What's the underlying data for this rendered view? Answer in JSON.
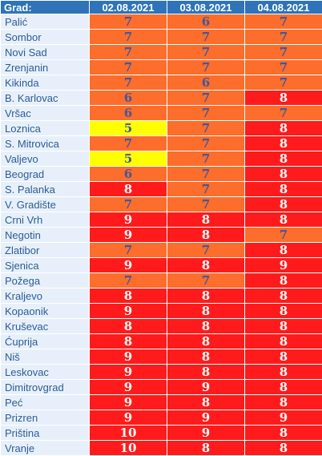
{
  "table": {
    "header": {
      "city": "Grad:",
      "dates": [
        "02.08.2021",
        "03.08.2021",
        "04.08.2021"
      ]
    },
    "level_colors": {
      "orange": "#fd6d2b",
      "red": "#ff1b1b",
      "yellow": "#ffff00"
    },
    "rows": [
      {
        "city": "Palić",
        "values": [
          "7",
          "6",
          "7"
        ],
        "levels": [
          "orange",
          "orange",
          "orange"
        ]
      },
      {
        "city": "Sombor",
        "values": [
          "7",
          "7",
          "7"
        ],
        "levels": [
          "orange",
          "orange",
          "orange"
        ]
      },
      {
        "city": "Novi Sad",
        "values": [
          "7",
          "7",
          "7"
        ],
        "levels": [
          "orange",
          "orange",
          "orange"
        ]
      },
      {
        "city": "Zrenjanin",
        "values": [
          "7",
          "7",
          "7"
        ],
        "levels": [
          "orange",
          "orange",
          "orange"
        ]
      },
      {
        "city": "Kikinda",
        "values": [
          "7",
          "6",
          "7"
        ],
        "levels": [
          "orange",
          "orange",
          "orange"
        ]
      },
      {
        "city": "B. Karlovac",
        "values": [
          "6",
          "7",
          "8"
        ],
        "levels": [
          "orange",
          "orange",
          "red"
        ]
      },
      {
        "city": "Vršac",
        "values": [
          "6",
          "7",
          "7"
        ],
        "levels": [
          "orange",
          "orange",
          "orange"
        ]
      },
      {
        "city": "Loznica",
        "values": [
          "5",
          "7",
          "8"
        ],
        "levels": [
          "yellow",
          "orange",
          "red"
        ]
      },
      {
        "city": "S. Mitrovica",
        "values": [
          "7",
          "7",
          "8"
        ],
        "levels": [
          "orange",
          "orange",
          "red"
        ]
      },
      {
        "city": "Valjevo",
        "values": [
          "5",
          "7",
          "8"
        ],
        "levels": [
          "yellow",
          "orange",
          "red"
        ]
      },
      {
        "city": "Beograd",
        "values": [
          "6",
          "7",
          "8"
        ],
        "levels": [
          "orange",
          "orange",
          "red"
        ]
      },
      {
        "city": "S. Palanka",
        "values": [
          "8",
          "7",
          "8"
        ],
        "levels": [
          "red",
          "orange",
          "red"
        ]
      },
      {
        "city": "V. Gradište",
        "values": [
          "7",
          "7",
          "8"
        ],
        "levels": [
          "orange",
          "orange",
          "red"
        ]
      },
      {
        "city": "Crni Vrh",
        "values": [
          "9",
          "8",
          "8"
        ],
        "levels": [
          "red",
          "red",
          "red"
        ]
      },
      {
        "city": "Negotin",
        "values": [
          "9",
          "8",
          "7"
        ],
        "levels": [
          "red",
          "red",
          "orange"
        ]
      },
      {
        "city": "Zlatibor",
        "values": [
          "7",
          "7",
          "8"
        ],
        "levels": [
          "orange",
          "orange",
          "red"
        ]
      },
      {
        "city": "Sjenica",
        "values": [
          "9",
          "8",
          "9"
        ],
        "levels": [
          "red",
          "red",
          "red"
        ]
      },
      {
        "city": "Požega",
        "values": [
          "7",
          "7",
          "8"
        ],
        "levels": [
          "orange",
          "orange",
          "red"
        ]
      },
      {
        "city": "Kraljevo",
        "values": [
          "8",
          "8",
          "8"
        ],
        "levels": [
          "red",
          "red",
          "red"
        ]
      },
      {
        "city": "Kopaonik",
        "values": [
          "9",
          "8",
          "8"
        ],
        "levels": [
          "red",
          "red",
          "red"
        ]
      },
      {
        "city": "Kruševac",
        "values": [
          "8",
          "8",
          "8"
        ],
        "levels": [
          "red",
          "red",
          "red"
        ]
      },
      {
        "city": "Ćuprija",
        "values": [
          "8",
          "8",
          "8"
        ],
        "levels": [
          "red",
          "red",
          "red"
        ]
      },
      {
        "city": "Niš",
        "values": [
          "9",
          "8",
          "8"
        ],
        "levels": [
          "red",
          "red",
          "red"
        ]
      },
      {
        "city": "Leskovac",
        "values": [
          "9",
          "8",
          "8"
        ],
        "levels": [
          "red",
          "red",
          "red"
        ]
      },
      {
        "city": "Dimitrovgrad",
        "values": [
          "9",
          "9",
          "8"
        ],
        "levels": [
          "red",
          "red",
          "red"
        ]
      },
      {
        "city": "Peć",
        "values": [
          "9",
          "8",
          "8"
        ],
        "levels": [
          "red",
          "red",
          "red"
        ]
      },
      {
        "city": "Prizren",
        "values": [
          "9",
          "9",
          "9"
        ],
        "levels": [
          "red",
          "red",
          "red"
        ]
      },
      {
        "city": "Priština",
        "values": [
          "10",
          "9",
          "8"
        ],
        "levels": [
          "red",
          "red",
          "red"
        ]
      },
      {
        "city": "Vranje",
        "values": [
          "10",
          "8",
          "8"
        ],
        "levels": [
          "red",
          "red",
          "red"
        ]
      }
    ]
  }
}
